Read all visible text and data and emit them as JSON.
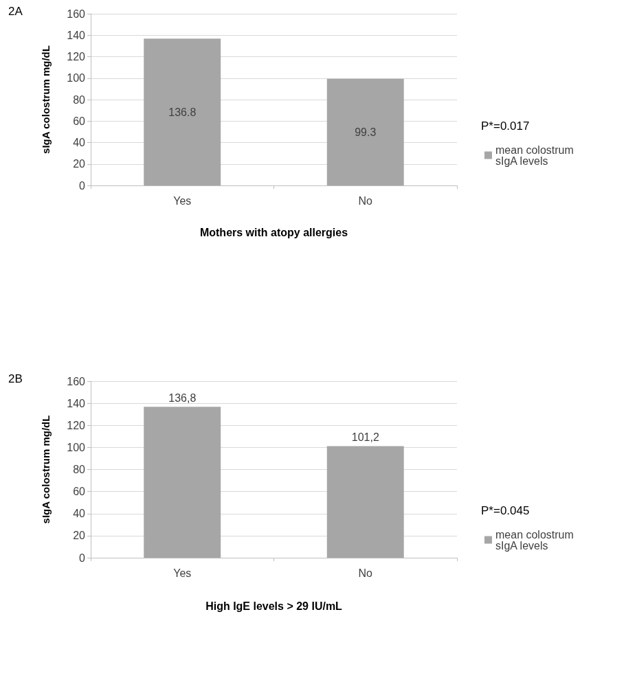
{
  "chart_data": [
    {
      "type": "bar",
      "ylabel": "sIgA colostrum mg/dL",
      "xlabel": "Mothers with atopy allergies",
      "annotations": [
        "2A",
        "P*=0.017"
      ],
      "categories": [
        "Yes",
        "No"
      ],
      "series": [
        {
          "name": "mean colostrum sIgA levels",
          "color": "#a6a6a6",
          "values": [
            136.8,
            99.3
          ]
        }
      ],
      "data_labels": true,
      "ylim": [
        0,
        160
      ],
      "yticks": [
        0,
        20,
        40,
        60,
        80,
        100,
        120,
        140,
        160
      ],
      "grid": "y",
      "legend": "right"
    },
    {
      "type": "bar",
      "ylabel": "sIgA colostrum mg/dL",
      "xlabel": "High IgE levels > 29 IU/mL",
      "annotations": [
        "2B",
        "P*=0.045"
      ],
      "categories": [
        "Yes",
        "No"
      ],
      "series": [
        {
          "name": "mean colostrum sIgA levels",
          "color": "#a6a6a6",
          "values": [
            136.8,
            101.2
          ],
          "value_labels": [
            "136,8",
            "101,2"
          ]
        }
      ],
      "ylim": [
        0,
        160
      ],
      "yticks": [
        0,
        20,
        40,
        60,
        80,
        100,
        120,
        140,
        160
      ],
      "grid": "y",
      "legend": "right"
    }
  ]
}
